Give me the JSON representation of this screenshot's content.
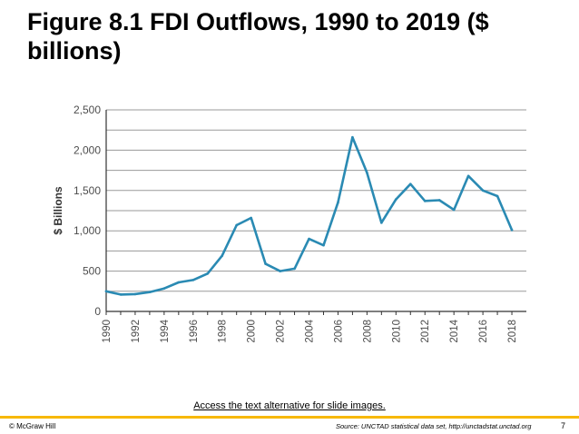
{
  "slide": {
    "title": "Figure 8.1 FDI Outflows, 1990 to 2019 ($ billions)",
    "alt_link": "Access the text alternative for slide images.",
    "copyright": "© McGraw Hill",
    "source": "Source: UNCTAD statistical data set, http://unctadstat.unctad.org",
    "page_number": "7"
  },
  "colors": {
    "line": "#2a8ab3",
    "grid": "#9a9a9a",
    "axis_text": "#4d4d4d",
    "footer_accent": "#f7b800"
  },
  "chart_data": {
    "type": "line",
    "title": "",
    "xlabel": "",
    "ylabel": "$ Billions",
    "ylim": [
      0,
      2500
    ],
    "xlim": [
      1990,
      2019
    ],
    "grid": true,
    "y_ticks": [
      0,
      500,
      1000,
      1500,
      2000,
      2500
    ],
    "y_tick_labels": [
      "0",
      "500",
      "1,000",
      "1,500",
      "2,000",
      "2,500"
    ],
    "x_ticks": [
      1990,
      1992,
      1994,
      1996,
      1998,
      2000,
      2002,
      2004,
      2006,
      2008,
      2010,
      2012,
      2014,
      2016,
      2018
    ],
    "x_tick_labels": [
      "1990",
      "1992",
      "1994",
      "1996",
      "1998",
      "2000",
      "2002",
      "2004",
      "2006",
      "2008",
      "2010",
      "2012",
      "2014",
      "2016",
      "2018"
    ],
    "x": [
      1990,
      1991,
      1992,
      1993,
      1994,
      1995,
      1996,
      1997,
      1998,
      1999,
      2000,
      2001,
      2002,
      2003,
      2004,
      2005,
      2006,
      2007,
      2008,
      2009,
      2010,
      2011,
      2012,
      2013,
      2014,
      2015,
      2016,
      2017,
      2018
    ],
    "series": [
      {
        "values": [
          250,
          210,
          215,
          240,
          285,
          360,
          390,
          470,
          690,
          1070,
          1160,
          590,
          500,
          530,
          900,
          820,
          1350,
          2160,
          1720,
          1100,
          1390,
          1580,
          1370,
          1380,
          1260,
          1680,
          1500,
          1430,
          1010
        ]
      }
    ]
  }
}
